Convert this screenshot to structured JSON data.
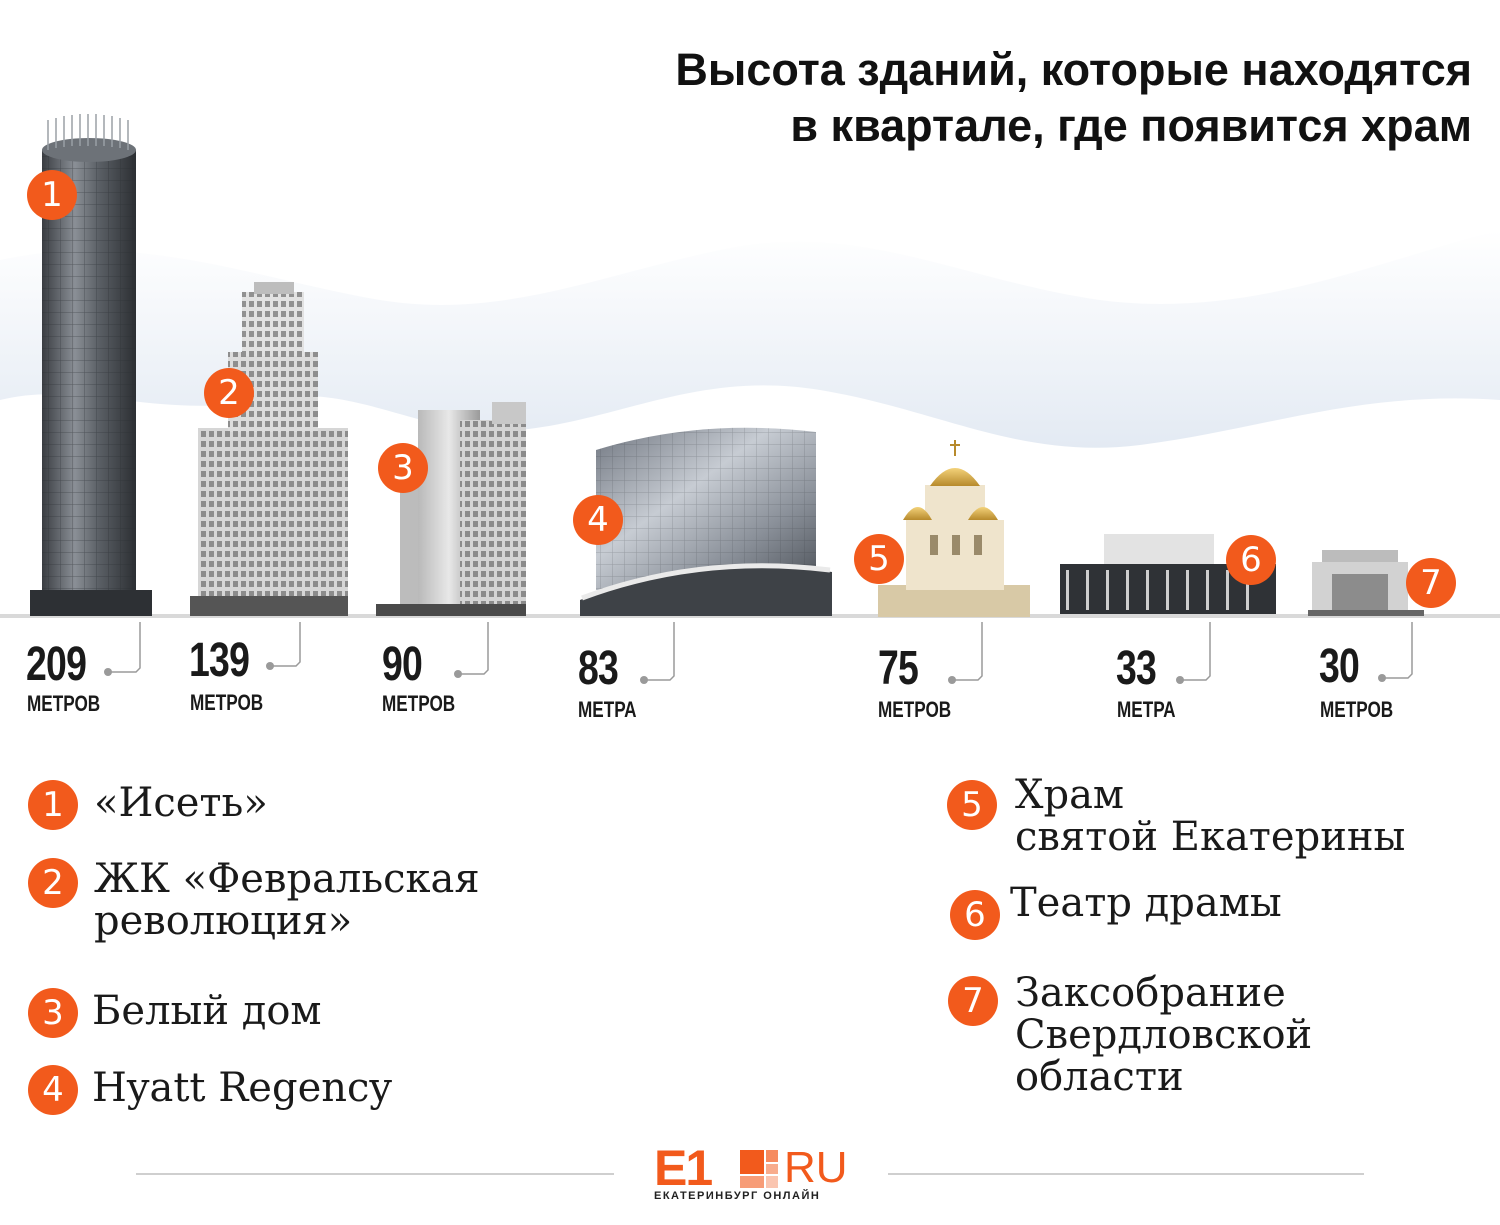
{
  "title": {
    "line1": "Высота зданий, которые находятся",
    "line2": "в квартале, где появится храм"
  },
  "colors": {
    "accent": "#f25a1c",
    "sky": "#e8eef6",
    "text": "#1a1a1a"
  },
  "buildings": [
    {
      "num": "1",
      "height": "209",
      "unit": "МЕТРОВ",
      "meters": 209
    },
    {
      "num": "2",
      "height": "139",
      "unit": "МЕТРОВ",
      "meters": 139
    },
    {
      "num": "3",
      "height": "90",
      "unit": "МЕТРОВ",
      "meters": 90
    },
    {
      "num": "4",
      "height": "83",
      "unit": "МЕТРА",
      "meters": 83
    },
    {
      "num": "5",
      "height": "75",
      "unit": "МЕТРОВ",
      "meters": 75
    },
    {
      "num": "6",
      "height": "33",
      "unit": "МЕТРА",
      "meters": 33
    },
    {
      "num": "7",
      "height": "30",
      "unit": "МЕТРОВ",
      "meters": 30
    }
  ],
  "legend": [
    {
      "num": "1",
      "lines": [
        "«Исеть»"
      ]
    },
    {
      "num": "2",
      "lines": [
        "ЖК «Февральская",
        "революция»"
      ]
    },
    {
      "num": "3",
      "lines": [
        "Белый дом"
      ]
    },
    {
      "num": "4",
      "lines": [
        "Hyatt Regency"
      ]
    },
    {
      "num": "5",
      "lines": [
        "Храм",
        "святой Екатерины"
      ]
    },
    {
      "num": "6",
      "lines": [
        "Театр драмы"
      ]
    },
    {
      "num": "7",
      "lines": [
        "Заксобрание",
        "Свердловской",
        "области"
      ]
    }
  ],
  "logo": {
    "brand": "E1",
    "domain": "RU",
    "subtitle": "ЕКАТЕРИНБУРГ ОНЛАЙН"
  }
}
